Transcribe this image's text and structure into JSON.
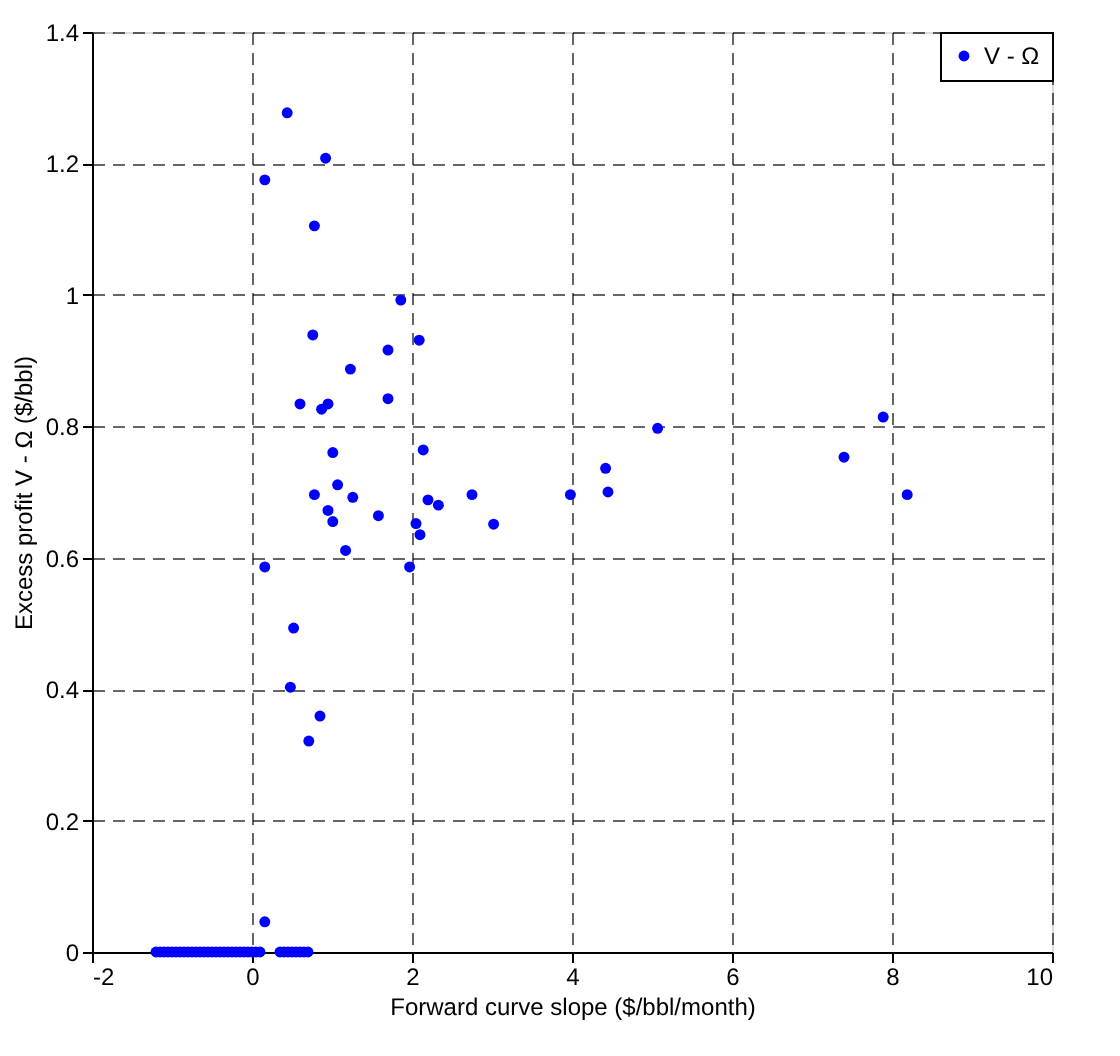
{
  "chart_data": {
    "type": "scatter",
    "xlabel": "Forward curve slope ($/bbl/month)",
    "ylabel": "Excess profit V - Ω ($/bbl)",
    "series": [
      {
        "name": "V - Ω",
        "color": "#0000ff",
        "x": [
          0.44,
          0.92,
          0.16,
          0.78,
          1.86,
          0.76,
          2.09,
          1.7,
          1.23,
          1.7,
          0.6,
          0.87,
          0.95,
          1.01,
          2.14,
          1.07,
          0.78,
          1.26,
          0.95,
          1.01,
          1.58,
          2.2,
          2.33,
          2.75,
          3.98,
          2.05,
          2.1,
          3.02,
          1.17,
          0.16,
          1.97,
          0.52,
          0.48,
          0.85,
          0.71,
          5.07,
          4.42,
          4.45,
          7.89,
          7.4,
          8.19,
          0.16,
          -1.2,
          -1.15,
          -1.1,
          -1.05,
          -1.0,
          -0.95,
          -0.9,
          -0.85,
          -0.8,
          -0.75,
          -0.7,
          -0.65,
          -0.6,
          -0.55,
          -0.5,
          -0.45,
          -0.4,
          -0.35,
          -0.3,
          -0.25,
          -0.2,
          -0.15,
          -0.1,
          -0.05,
          0.0,
          0.05,
          0.1,
          0.35,
          0.4,
          0.45,
          0.5,
          0.55,
          0.6,
          0.65,
          0.7
        ],
        "values": [
          1.277,
          1.208,
          1.175,
          1.105,
          0.992,
          0.939,
          0.931,
          0.916,
          0.887,
          0.842,
          0.834,
          0.826,
          0.834,
          0.76,
          0.764,
          0.711,
          0.696,
          0.692,
          0.672,
          0.655,
          0.664,
          0.688,
          0.68,
          0.696,
          0.696,
          0.652,
          0.635,
          0.651,
          0.611,
          0.586,
          0.586,
          0.493,
          0.403,
          0.359,
          0.321,
          0.797,
          0.736,
          0.7,
          0.814,
          0.753,
          0.696,
          0.046,
          0,
          0,
          0,
          0,
          0,
          0,
          0,
          0,
          0,
          0,
          0,
          0,
          0,
          0,
          0,
          0,
          0,
          0,
          0,
          0,
          0,
          0,
          0,
          0,
          0,
          0,
          0,
          0,
          0,
          0,
          0,
          0,
          0,
          0,
          0
        ]
      }
    ],
    "xlim": [
      -2,
      10
    ],
    "xticks": [
      -2,
      0,
      2,
      4,
      6,
      8,
      10
    ],
    "ylim": [
      0,
      1.4
    ],
    "yticks": [
      0,
      0.2,
      0.4,
      0.6,
      0.8,
      1,
      1.2,
      1.4
    ],
    "grid": true,
    "legend": "top right",
    "marker": "circle"
  }
}
